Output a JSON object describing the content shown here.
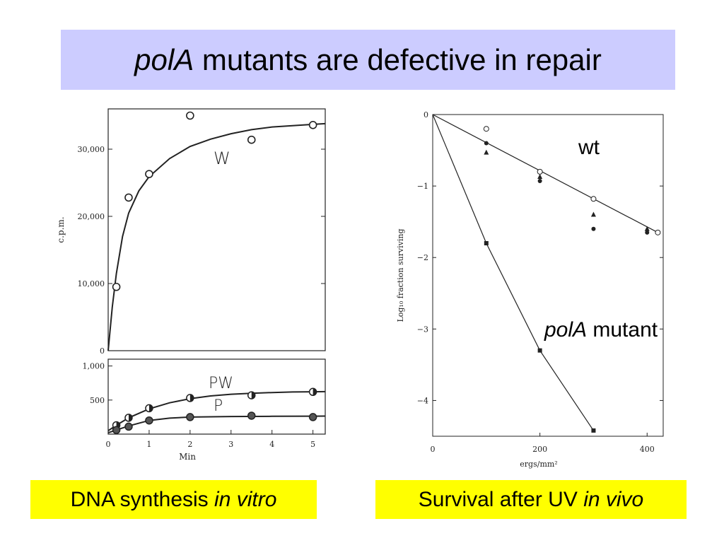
{
  "title": {
    "gene": "polA",
    "rest": " mutants are defective in repair"
  },
  "captions": {
    "left": {
      "main": "DNA synthesis ",
      "italic": "in vitro"
    },
    "right": {
      "main": "Survival after UV ",
      "italic": "in vivo"
    }
  },
  "overlays": {
    "wt": "wt",
    "mutant_gene": "polA",
    "mutant_rest": " mutant"
  },
  "chart_data": [
    {
      "type": "line",
      "panel": "top",
      "xlabel": "",
      "ylabel": "c.p.m.",
      "xlim": [
        0,
        5.3
      ],
      "ylim": [
        0,
        36000
      ],
      "y_ticks": [
        "0",
        "10,000",
        "20,000",
        "30,000"
      ],
      "y_tick_values": [
        0,
        10000,
        20000,
        30000
      ],
      "series": [
        {
          "name": "W",
          "points": [
            [
              0.2,
              9500
            ],
            [
              0.5,
              22800
            ],
            [
              1.0,
              26300
            ],
            [
              2.0,
              35000
            ],
            [
              3.5,
              31400
            ],
            [
              5.0,
              33600
            ]
          ],
          "curve": [
            [
              0,
              0
            ],
            [
              0.1,
              6500
            ],
            [
              0.2,
              11500
            ],
            [
              0.35,
              17000
            ],
            [
              0.5,
              20500
            ],
            [
              0.75,
              23800
            ],
            [
              1.0,
              25900
            ],
            [
              1.5,
              28600
            ],
            [
              2.0,
              30400
            ],
            [
              2.5,
              31500
            ],
            [
              3.0,
              32300
            ],
            [
              3.5,
              32900
            ],
            [
              4.0,
              33300
            ],
            [
              4.5,
              33500
            ],
            [
              5.0,
              33700
            ],
            [
              5.3,
              33800
            ]
          ]
        }
      ]
    },
    {
      "type": "line",
      "panel": "bottom",
      "xlabel": "Min",
      "ylabel": "",
      "xlim": [
        0,
        5.3
      ],
      "ylim": [
        0,
        1100
      ],
      "x_ticks": [
        "0",
        "1",
        "2",
        "3",
        "4",
        "5"
      ],
      "x_tick_values": [
        0,
        1,
        2,
        3,
        4,
        5
      ],
      "y_ticks": [
        "500",
        "1,000"
      ],
      "y_tick_values": [
        500,
        1000
      ],
      "series": [
        {
          "name": "PW",
          "points": [
            [
              0.2,
              130
            ],
            [
              0.5,
              240
            ],
            [
              1.0,
              380
            ],
            [
              2.0,
              530
            ],
            [
              3.5,
              570
            ],
            [
              5.0,
              620
            ]
          ],
          "curve": [
            [
              0,
              50
            ],
            [
              0.2,
              130
            ],
            [
              0.5,
              240
            ],
            [
              1.0,
              370
            ],
            [
              1.5,
              460
            ],
            [
              2.0,
              520
            ],
            [
              2.5,
              560
            ],
            [
              3.0,
              585
            ],
            [
              3.5,
              600
            ],
            [
              4.0,
              610
            ],
            [
              4.5,
              618
            ],
            [
              5.0,
              622
            ],
            [
              5.3,
              624
            ]
          ]
        },
        {
          "name": "P",
          "points": [
            [
              0.2,
              60
            ],
            [
              0.5,
              110
            ],
            [
              1.0,
              200
            ],
            [
              2.0,
              250
            ],
            [
              3.5,
              270
            ],
            [
              5.0,
              250
            ]
          ],
          "curve": [
            [
              0,
              20
            ],
            [
              0.2,
              60
            ],
            [
              0.5,
              120
            ],
            [
              1.0,
              200
            ],
            [
              1.5,
              235
            ],
            [
              2.0,
              250
            ],
            [
              3.0,
              258
            ],
            [
              4.0,
              262
            ],
            [
              5.0,
              264
            ],
            [
              5.3,
              265
            ]
          ]
        }
      ]
    },
    {
      "type": "line",
      "panel": "right",
      "xlabel": "ergs/mm²",
      "ylabel": "Log₁₀ fraction surviving",
      "xlim": [
        0,
        430
      ],
      "ylim": [
        -4.5,
        0
      ],
      "x_ticks": [
        "0",
        "200",
        "400"
      ],
      "x_tick_values": [
        0,
        200,
        400
      ],
      "y_ticks": [
        "0",
        "−1",
        "−2",
        "−3",
        "−4"
      ],
      "y_tick_values": [
        0,
        -1,
        -2,
        -3,
        -4
      ],
      "series": [
        {
          "name": "wt",
          "line": [
            [
              0,
              0
            ],
            [
              420,
              -1.65
            ]
          ],
          "points_open": [
            [
              100,
              -0.2
            ],
            [
              200,
              -0.8
            ],
            [
              300,
              -1.18
            ],
            [
              420,
              -1.65
            ]
          ],
          "points_filled": [
            [
              100,
              -0.4
            ],
            [
              200,
              -0.93
            ],
            [
              300,
              -1.6
            ],
            [
              400,
              -1.65
            ]
          ],
          "points_triangle": [
            [
              100,
              -0.53
            ],
            [
              200,
              -0.87
            ],
            [
              300,
              -1.4
            ],
            [
              400,
              -1.6
            ]
          ]
        },
        {
          "name": "polA mutant",
          "line": [
            [
              0,
              0
            ],
            [
              100,
              -1.8
            ],
            [
              200,
              -3.3
            ],
            [
              300,
              -4.42
            ]
          ],
          "points_square": [
            [
              100,
              -1.8
            ],
            [
              200,
              -3.3
            ],
            [
              300,
              -4.42
            ]
          ]
        }
      ]
    }
  ]
}
